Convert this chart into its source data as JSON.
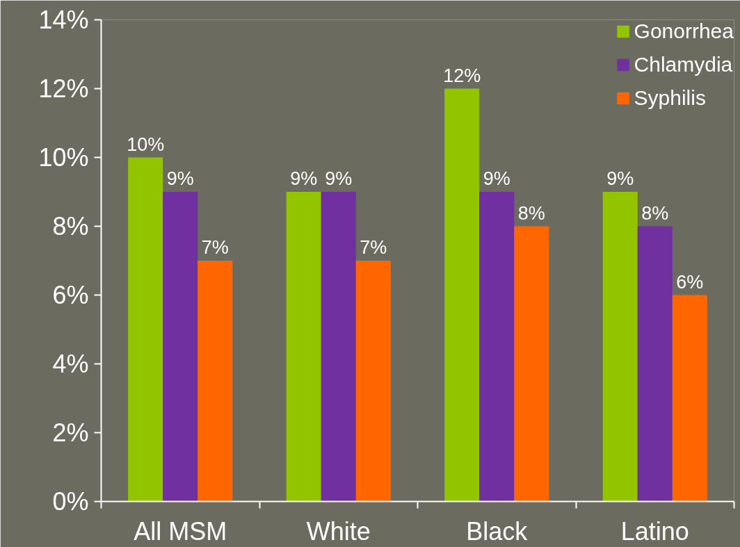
{
  "chart_data": {
    "type": "bar",
    "categories": [
      "All MSM",
      "White",
      "Black",
      "Latino"
    ],
    "series": [
      {
        "name": "Gonorrhea",
        "color": "#93c400",
        "values": [
          10,
          9,
          12,
          9
        ],
        "value_labels": [
          "10%",
          "9%",
          "12%",
          "9%"
        ]
      },
      {
        "name": "Chlamydia",
        "color": "#7030a0",
        "values": [
          9,
          9,
          9,
          8
        ],
        "value_labels": [
          "9%",
          "9%",
          "9%",
          "8%"
        ]
      },
      {
        "name": "Syphilis",
        "color": "#ff6600",
        "values": [
          7,
          7,
          8,
          6
        ],
        "value_labels": [
          "7%",
          "7%",
          "8%",
          "6%"
        ]
      }
    ],
    "ylim": [
      0,
      14
    ],
    "yticks": [
      {
        "value": 0,
        "label": "0%"
      },
      {
        "value": 2,
        "label": "2%"
      },
      {
        "value": 4,
        "label": "4%"
      },
      {
        "value": 6,
        "label": "6%"
      },
      {
        "value": 8,
        "label": "8%"
      },
      {
        "value": 10,
        "label": "10%"
      },
      {
        "value": 12,
        "label": "12%"
      },
      {
        "value": 14,
        "label": "14%"
      }
    ],
    "grid": false,
    "legend": "top right"
  }
}
